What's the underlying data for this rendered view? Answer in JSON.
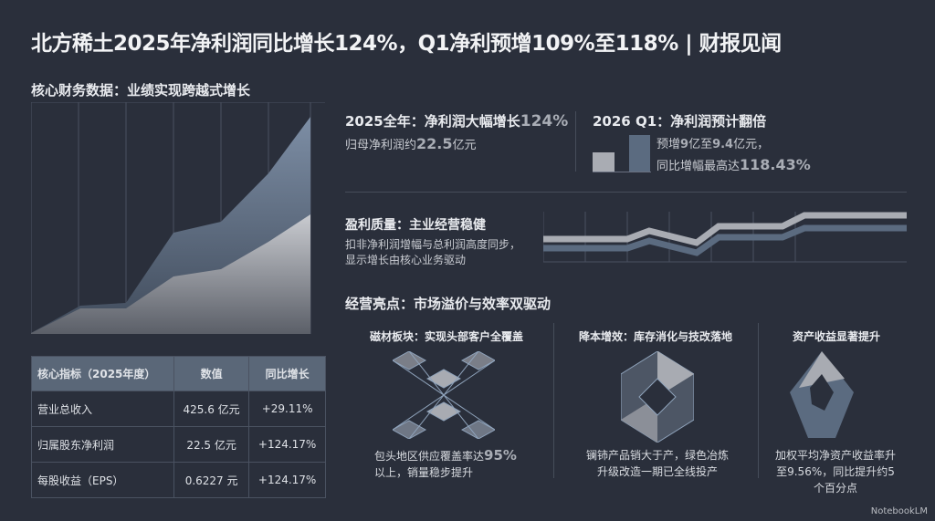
{
  "title": "北方稀土2025年净利润同比增长124%，Q1净利预增109%至118% | 财报见闻",
  "subtitle": "核心财务数据：业绩实现跨越式增长",
  "fy2025": {
    "heading": "2025全年：净利润大幅增长",
    "heading_pct": "124%",
    "text": "归母净利润约",
    "value": "22.5",
    "unit": "亿元"
  },
  "q1": {
    "heading": "2026 Q1：净利润预计翻倍",
    "line1_a": "预增",
    "line1_b": "9",
    "line1_c": "亿至",
    "line1_d": "9.4",
    "line1_e": "亿元，",
    "line2_a": "同比增幅最高达",
    "line2_b": "118.43%"
  },
  "quality": {
    "heading": "盈利质量：主业经营稳健",
    "text1": "扣非净利润增幅与总利润高度同步，",
    "text2": "显示增长由核心业务驱动"
  },
  "highlights": {
    "heading": "经营亮点：市场溢价与效率双驱动",
    "items": [
      {
        "title": "磁材板块：实现头部客户全覆盖",
        "text_a": "包头地区供应覆盖率达",
        "text_b": "95%",
        "text_c": "以上，销量稳步提升"
      },
      {
        "title": "降本增效：库存消化与技改落地",
        "text_a": "镧铈产品销大于产，绿色冶炼升级改造一期已全线投产"
      },
      {
        "title": "资产收益显著提升",
        "text_a": "加权平均净资产收益率升至9.56%，同比提升约5个百分点"
      }
    ]
  },
  "table": {
    "headers": [
      "核心指标（2025年度）",
      "数值",
      "同比增长"
    ],
    "rows": [
      [
        "营业总收入",
        "425.6 亿元",
        "+29.11%"
      ],
      [
        "归属股东净利润",
        "22.5 亿元",
        "+124.17%"
      ],
      [
        "每股收益（EPS）",
        "0.6227 元",
        "+124.17%"
      ]
    ]
  },
  "colors": {
    "background": "#2a2f3b",
    "accent_blue": "#5b6b80",
    "accent_gray": "#a9acb3"
  },
  "watermark": "NotebookLM"
}
